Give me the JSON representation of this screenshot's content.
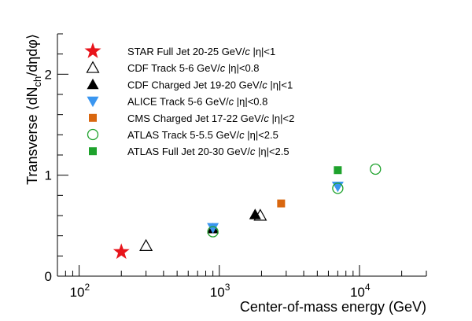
{
  "chart_data": {
    "type": "scatter",
    "xlabel": "Center-of-mass energy (GeV)",
    "ylabel_parts": [
      "Transverse ",
      "⟨",
      "dN",
      "ch",
      "/dηdφ",
      "⟩"
    ],
    "xscale": "log",
    "xlim": [
      70,
      30000
    ],
    "ylim": [
      0,
      2.4
    ],
    "grid": false,
    "legend_position": "top-left",
    "x_ticks": [
      {
        "base": "10",
        "exp": "2",
        "value": 100
      },
      {
        "base": "10",
        "exp": "3",
        "value": 1000
      },
      {
        "base": "10",
        "exp": "4",
        "value": 10000
      }
    ],
    "y_ticks": [
      {
        "label": "0",
        "value": 0
      },
      {
        "label": "1",
        "value": 1
      },
      {
        "label": "2",
        "value": 2
      }
    ],
    "series": [
      {
        "name": "STAR Full Jet 20-25 GeV/c |η|<1",
        "name_parts": [
          "STAR Full Jet 20-25 GeV/",
          "c",
          " |η|<1"
        ],
        "marker": "star",
        "color": "#e8141b",
        "points": [
          {
            "x": 200,
            "y": 0.24
          }
        ]
      },
      {
        "name": "CDF Track 5-6 GeV/c |η|<0.8",
        "name_parts": [
          "CDF Track 5-6 GeV/",
          "c",
          " |η|<0.8"
        ],
        "marker": "triangle-open",
        "color": "#000000",
        "points": [
          {
            "x": 300,
            "y": 0.3
          },
          {
            "x": 1960,
            "y": 0.6
          }
        ]
      },
      {
        "name": "CDF Charged Jet 19-20 GeV/c |η|<1",
        "name_parts": [
          "CDF Charged Jet 19-20 GeV/",
          "c",
          " |η|<1"
        ],
        "marker": "triangle",
        "color": "#000000",
        "points": [
          {
            "x": 900,
            "y": 0.47
          },
          {
            "x": 1800,
            "y": 0.61
          }
        ]
      },
      {
        "name": "ALICE Track 5-6 GeV/c |η|<0.8",
        "name_parts": [
          "ALICE Track 5-6 GeV/",
          "c",
          " |η|<0.8"
        ],
        "marker": "triangle-down",
        "color": "#3a96f0",
        "points": [
          {
            "x": 900,
            "y": 0.48
          },
          {
            "x": 7000,
            "y": 0.89
          }
        ]
      },
      {
        "name": "CMS Charged Jet 17-22 GeV/c |η|<2",
        "name_parts": [
          "CMS Charged Jet 17-22 GeV/",
          "c",
          " |η|<2"
        ],
        "marker": "square",
        "color": "#d9670f",
        "points": [
          {
            "x": 2760,
            "y": 0.72
          }
        ]
      },
      {
        "name": "ATLAS Track 5-5.5 GeV/c |η|<2.5",
        "name_parts": [
          "ATLAS Track 5-5.5 GeV/",
          "c",
          " |η|<2.5"
        ],
        "marker": "circle-open",
        "color": "#1ea22c",
        "points": [
          {
            "x": 900,
            "y": 0.44
          },
          {
            "x": 7000,
            "y": 0.87
          },
          {
            "x": 13000,
            "y": 1.06
          }
        ]
      },
      {
        "name": "ATLAS Full Jet 20-30 GeV/c |η|<2.5",
        "name_parts": [
          "ATLAS Full Jet 20-30 GeV/",
          "c",
          " |η|<2.5"
        ],
        "marker": "square",
        "color": "#1ea22c",
        "points": [
          {
            "x": 7000,
            "y": 1.05
          }
        ]
      }
    ]
  }
}
